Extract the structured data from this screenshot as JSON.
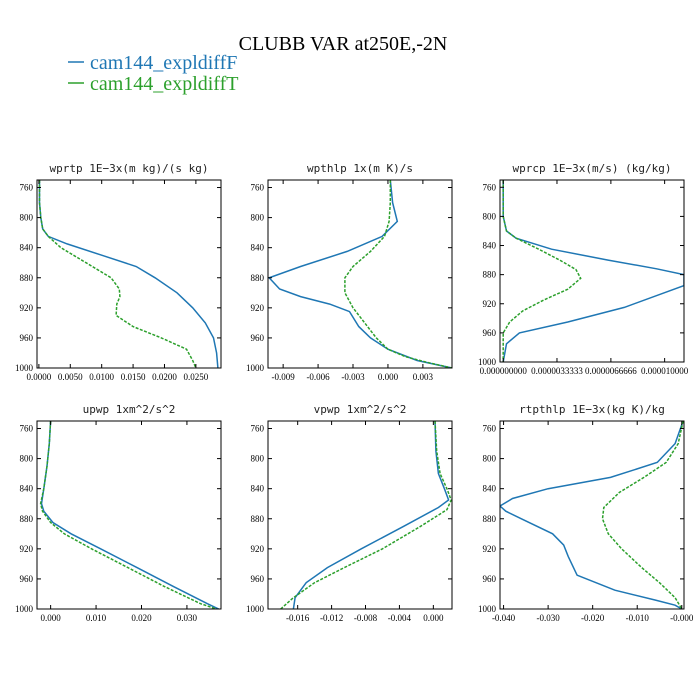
{
  "figure": {
    "title": "CLUBB VAR at250E,-2N",
    "legend": [
      {
        "label": "cam144_expldiffF",
        "color": "#1f77b4"
      },
      {
        "label": "cam144_expldiffT",
        "color": "#2ca02c"
      }
    ]
  },
  "chart_data": [
    {
      "type": "line",
      "title": "wprtp   1E−3x(m kg)/(s kg)",
      "xlim": [
        -0.0003,
        0.029
      ],
      "ylim": [
        1000,
        750
      ],
      "xticks": [
        0.0,
        0.005,
        0.01,
        0.015,
        0.02,
        0.025
      ],
      "xtick_labels": [
        "0.0000",
        "0.0050",
        "0.0100",
        "0.0150",
        "0.0200",
        "0.0250"
      ],
      "yticks": [
        760,
        800,
        840,
        880,
        920,
        960,
        1000
      ],
      "series": [
        {
          "name": "cam144_expldiffF",
          "color": "#1f77b4",
          "dashed": false,
          "x": [
            0.0001,
            0.0001,
            0.0003,
            0.0006,
            0.0015,
            0.0045,
            0.01,
            0.0155,
            0.0185,
            0.022,
            0.0245,
            0.0265,
            0.0278,
            0.0283,
            0.0285
          ],
          "y": [
            750,
            780,
            800,
            815,
            825,
            835,
            850,
            865,
            880,
            900,
            920,
            940,
            960,
            980,
            1000
          ]
        },
        {
          "name": "cam144_expldiffT",
          "color": "#2ca02c",
          "dashed": true,
          "x": [
            0.0001,
            0.0001,
            0.0003,
            0.0006,
            0.0015,
            0.0035,
            0.0075,
            0.0115,
            0.0128,
            0.0129,
            0.0124,
            0.0123,
            0.015,
            0.0195,
            0.0235,
            0.0245,
            0.025
          ],
          "y": [
            750,
            780,
            800,
            815,
            825,
            840,
            860,
            880,
            895,
            905,
            915,
            930,
            945,
            960,
            975,
            990,
            1000
          ]
        }
      ]
    },
    {
      "type": "line",
      "title": "wpthlp   1x(m K)/s",
      "xlim": [
        -0.0103,
        0.0055
      ],
      "ylim": [
        1000,
        750
      ],
      "xticks": [
        -0.009,
        -0.006,
        -0.003,
        0.0,
        0.003
      ],
      "xtick_labels": [
        "-0.009",
        "-0.006",
        "-0.003",
        "0.000",
        "0.003"
      ],
      "yticks": [
        760,
        800,
        840,
        880,
        920,
        960,
        1000
      ],
      "series": [
        {
          "name": "cam144_expldiffF",
          "color": "#1f77b4",
          "dashed": false,
          "x": [
            0.0002,
            0.0004,
            0.0008,
            -0.0005,
            -0.0035,
            -0.0075,
            -0.0102,
            -0.0093,
            -0.0075,
            -0.005,
            -0.0033,
            -0.0025,
            -0.0015,
            0.0,
            0.0025,
            0.0055
          ],
          "y": [
            750,
            780,
            805,
            825,
            845,
            865,
            880,
            895,
            905,
            915,
            925,
            945,
            960,
            975,
            990,
            1000
          ]
        },
        {
          "name": "cam144_expldiffT",
          "color": "#2ca02c",
          "dashed": true,
          "x": [
            0.0002,
            0.0002,
            0.0001,
            -0.0003,
            -0.0015,
            -0.003,
            -0.0037,
            -0.0037,
            -0.003,
            -0.002,
            -0.001,
            0.0,
            0.0015,
            0.0035,
            0.0055
          ],
          "y": [
            750,
            780,
            805,
            825,
            845,
            865,
            880,
            900,
            920,
            940,
            960,
            975,
            985,
            993,
            1000
          ]
        }
      ]
    },
    {
      "type": "line",
      "title": "wprcp   1E−3x(m/s) (kg/kg)",
      "xlim": [
        -2e-07,
        1.12e-05
      ],
      "ylim": [
        1000,
        750
      ],
      "xticks": [
        0.0,
        3.33e-06,
        6.67e-06,
        1e-05
      ],
      "xtick_labels": [
        "0.000000000",
        "0.0000033333",
        "0.0000066666",
        "0.000010000"
      ],
      "yticks": [
        760,
        800,
        840,
        880,
        920,
        960,
        1000
      ],
      "series": [
        {
          "name": "cam144_expldiffF",
          "color": "#1f77b4",
          "dashed": false,
          "x": [
            0.0,
            0.0,
            2e-07,
            8e-07,
            3e-06,
            6.5e-06,
            9.5e-06,
            1.12e-05,
            1.12e-05,
            7.5e-06,
            4e-06,
            1e-06,
            2e-07,
            0.0
          ],
          "y": [
            750,
            800,
            820,
            830,
            845,
            860,
            872,
            880,
            895,
            925,
            945,
            960,
            975,
            1000
          ]
        },
        {
          "name": "cam144_expldiffT",
          "color": "#2ca02c",
          "dashed": true,
          "x": [
            0.0,
            0.0,
            2e-07,
            8e-07,
            2.2e-06,
            3.5e-06,
            4.5e-06,
            4.8e-06,
            4e-06,
            2.5e-06,
            1.2e-06,
            4e-07,
            0.0,
            0.0
          ],
          "y": [
            750,
            800,
            820,
            830,
            845,
            860,
            873,
            885,
            900,
            915,
            930,
            945,
            960,
            1000
          ]
        }
      ]
    },
    {
      "type": "line",
      "title": "upwp   1xm^2/s^2",
      "xlim": [
        -0.003,
        0.0375
      ],
      "ylim": [
        1000,
        750
      ],
      "xticks": [
        0.0,
        0.01,
        0.02,
        0.03
      ],
      "xtick_labels": [
        "0.000",
        "0.010",
        "0.020",
        "0.030"
      ],
      "yticks": [
        760,
        800,
        840,
        880,
        920,
        960,
        1000
      ],
      "series": [
        {
          "name": "cam144_expldiffF",
          "color": "#1f77b4",
          "dashed": false,
          "x": [
            0.0,
            -0.0003,
            -0.0008,
            -0.0015,
            -0.002,
            -0.0015,
            0.0005,
            0.0045,
            0.011,
            0.019,
            0.027,
            0.0345,
            0.037
          ],
          "y": [
            750,
            780,
            810,
            840,
            860,
            870,
            885,
            900,
            920,
            945,
            970,
            993,
            1000
          ]
        },
        {
          "name": "cam144_expldiffT",
          "color": "#2ca02c",
          "dashed": true,
          "x": [
            0.0,
            -0.0003,
            -0.0008,
            -0.0015,
            -0.0022,
            -0.0018,
            0.0,
            0.003,
            0.009,
            0.017,
            0.025,
            0.033,
            0.0365
          ],
          "y": [
            750,
            780,
            810,
            840,
            860,
            870,
            885,
            900,
            920,
            945,
            970,
            993,
            1000
          ]
        }
      ]
    },
    {
      "type": "line",
      "title": "vpwp   1xm^2/s^2",
      "xlim": [
        -0.0195,
        0.0022
      ],
      "ylim": [
        1000,
        750
      ],
      "xticks": [
        -0.016,
        -0.012,
        -0.008,
        -0.004,
        0.0
      ],
      "xtick_labels": [
        "-0.016",
        "-0.012",
        "-0.008",
        "-0.004",
        "0.000"
      ],
      "yticks": [
        760,
        800,
        840,
        880,
        920,
        960,
        1000
      ],
      "series": [
        {
          "name": "cam144_expldiffF",
          "color": "#1f77b4",
          "dashed": false,
          "x": [
            0.0002,
            0.0003,
            0.0006,
            0.0013,
            0.0018,
            0.0006,
            -0.0035,
            -0.0085,
            -0.0125,
            -0.015,
            -0.0163,
            -0.0165
          ],
          "y": [
            750,
            790,
            820,
            840,
            855,
            865,
            890,
            920,
            945,
            965,
            985,
            1000
          ]
        },
        {
          "name": "cam144_expldiffT",
          "color": "#2ca02c",
          "dashed": true,
          "x": [
            0.0002,
            0.0004,
            0.0008,
            0.0016,
            0.0021,
            0.0016,
            -0.0015,
            -0.006,
            -0.0105,
            -0.014,
            -0.0165,
            -0.018
          ],
          "y": [
            750,
            790,
            820,
            840,
            855,
            868,
            890,
            920,
            945,
            965,
            985,
            1000
          ]
        }
      ]
    },
    {
      "type": "line",
      "title": "rtpthlp   1E−3x(kg K)/kg",
      "xlim": [
        -0.0408,
        0.0005
      ],
      "ylim": [
        1000,
        750
      ],
      "xticks": [
        -0.04,
        -0.03,
        -0.02,
        -0.01,
        0.0
      ],
      "xtick_labels": [
        "-0.040",
        "-0.030",
        "-0.020",
        "-0.010",
        "-0.000"
      ],
      "yticks": [
        760,
        800,
        840,
        880,
        920,
        960,
        1000
      ],
      "series": [
        {
          "name": "cam144_expldiffF",
          "color": "#1f77b4",
          "dashed": false,
          "x": [
            0.0003,
            -0.0015,
            -0.0055,
            -0.016,
            -0.03,
            -0.038,
            -0.0408,
            -0.0395,
            -0.036,
            -0.029,
            -0.0265,
            -0.0255,
            -0.0235,
            -0.015,
            -0.006,
            -0.0015,
            0.0
          ],
          "y": [
            750,
            780,
            805,
            825,
            840,
            853,
            863,
            870,
            880,
            900,
            915,
            930,
            955,
            975,
            988,
            995,
            1000
          ]
        },
        {
          "name": "cam144_expldiffT",
          "color": "#2ca02c",
          "dashed": true,
          "x": [
            0.0003,
            -0.0008,
            -0.0035,
            -0.0085,
            -0.014,
            -0.0175,
            -0.0178,
            -0.0165,
            -0.0135,
            -0.009,
            -0.005,
            -0.0015,
            0.0
          ],
          "y": [
            750,
            780,
            805,
            825,
            845,
            865,
            880,
            900,
            920,
            945,
            965,
            985,
            1000
          ]
        }
      ]
    }
  ]
}
